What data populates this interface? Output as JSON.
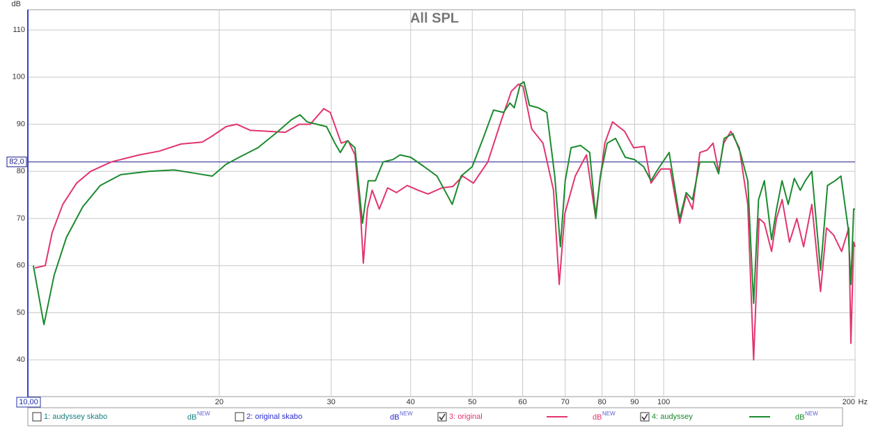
{
  "chart_data": {
    "type": "line",
    "title": "All SPL",
    "ylabel": "dB",
    "xlabel": "Hz",
    "log_x": true,
    "grid": true,
    "xlim": [
      10,
      200
    ],
    "xticks": [
      {
        "value": 10,
        "label": "10,00"
      },
      20,
      30,
      40,
      50,
      60,
      70,
      80,
      90,
      100,
      200
    ],
    "ylim": [
      32.2,
      114.3
    ],
    "yticks": [
      40,
      50,
      60,
      70,
      80,
      90,
      100,
      110
    ],
    "reference_line": {
      "value": 82,
      "label": "82,0",
      "color": "#1a1a8c"
    },
    "legend_unit": "dB",
    "legend_unit_sup": "NEW",
    "hidden_traces": [
      {
        "name": "1: audyssey skabo",
        "color": "#178080",
        "checked": false
      },
      {
        "name": "2: original skabo",
        "color": "#2a2ad0",
        "checked": false
      }
    ],
    "series": [
      {
        "name": "3: original",
        "color": "#e2346e",
        "checked": true,
        "x": [
          10.26,
          10.65,
          10.92,
          11.35,
          11.93,
          12.55,
          13.53,
          14.97,
          16.1,
          17.4,
          18.8,
          19.5,
          20.5,
          21.3,
          22.4,
          23.9,
          25.4,
          26.7,
          27.8,
          29.2,
          29.9,
          31.1,
          31.9,
          32.7,
          33.4,
          33.7,
          34.2,
          34.8,
          35.7,
          36.8,
          38.0,
          39.5,
          41.1,
          42.6,
          44.8,
          46.6,
          48.3,
          50.2,
          52.9,
          55.6,
          57.6,
          59.1,
          60.1,
          62,
          64.6,
          67.1,
          68.5,
          69.9,
          72.6,
          75.6,
          78.1,
          80.8,
          83.1,
          86.8,
          89.7,
          93.3,
          95.5,
          99.0,
          102.4,
          106,
          108.5,
          111,
          114,
          117,
          119.6,
          122,
          124.3,
          127.5,
          131.5,
          135.6,
          138.5,
          141.3,
          144,
          147.8,
          150.5,
          153.6,
          157.7,
          162,
          166,
          171,
          176.5,
          180.3,
          185,
          190.5,
          195.5,
          197,
          199,
          200
        ],
        "values": [
          59.5,
          60,
          67,
          73,
          77.5,
          80,
          82,
          83.5,
          84.3,
          85.8,
          86.2,
          87.5,
          89.5,
          90,
          88.7,
          88.5,
          88.3,
          90,
          90,
          93.3,
          92.5,
          86,
          86.5,
          83.5,
          70,
          60.5,
          72,
          76,
          72,
          76.5,
          75.5,
          77,
          76,
          75.2,
          76.5,
          76.8,
          79,
          77.5,
          82,
          91,
          97,
          98.5,
          98,
          89,
          86,
          76,
          56,
          71,
          79,
          83.5,
          70.5,
          86,
          90.5,
          88.5,
          85,
          85.3,
          77.5,
          80.5,
          80.5,
          69,
          75,
          72,
          84,
          84.5,
          86,
          80,
          86,
          88.5,
          85,
          73,
          40,
          70,
          69,
          63,
          70,
          74,
          65,
          70,
          64,
          73,
          54.5,
          68,
          66.5,
          63,
          68,
          43.5,
          65,
          64
        ]
      },
      {
        "name": "4: audyssey",
        "color": "#1b8a2e",
        "checked": true,
        "x": [
          10.2,
          10.6,
          11.0,
          11.5,
          12.2,
          13.0,
          14.0,
          15.5,
          17.0,
          18.5,
          19.5,
          20.5,
          21.5,
          23,
          24.5,
          26,
          26.8,
          27.5,
          28.5,
          29.5,
          30.4,
          31.0,
          31.8,
          32.7,
          33.6,
          34.3,
          35.2,
          36.2,
          37.5,
          38.5,
          40.0,
          42.0,
          44,
          46.5,
          48,
          50,
          52,
          54,
          56,
          57.3,
          58.2,
          59.5,
          60.3,
          61.5,
          63.5,
          65.5,
          67.4,
          68.8,
          70.0,
          71.5,
          74,
          76.5,
          78.2,
          79.5,
          81.5,
          84,
          87,
          90,
          93,
          95.5,
          98,
          102,
          106,
          108.5,
          111,
          114,
          117,
          120,
          122,
          124.5,
          128.5,
          132,
          135.6,
          138.5,
          141,
          144,
          147.8,
          150.5,
          153.5,
          157,
          160.5,
          164,
          167,
          171,
          176.5,
          181,
          186,
          190,
          195,
          197,
          199,
          200
        ],
        "values": [
          60,
          47.5,
          58,
          66,
          72.5,
          77,
          79.3,
          80,
          80.3,
          79.5,
          79,
          81.5,
          83,
          85,
          88,
          91,
          92,
          90.5,
          90,
          89.5,
          86,
          84,
          86.5,
          85,
          69,
          78,
          78,
          82,
          82.5,
          83.5,
          83,
          81,
          79,
          73,
          79,
          81,
          87,
          93,
          92.5,
          94.5,
          93.5,
          98.5,
          99,
          94,
          93.5,
          92.5,
          79,
          64,
          78,
          85,
          85.5,
          84,
          70,
          79,
          86,
          87,
          83,
          82.5,
          81,
          78,
          80.5,
          84,
          70,
          75.5,
          74,
          82,
          82,
          82,
          79.5,
          87,
          88,
          84,
          78,
          52,
          74,
          78,
          65.5,
          72,
          78,
          73,
          78.5,
          76,
          78,
          80,
          59,
          77,
          78,
          79,
          68,
          56,
          72,
          72
        ]
      }
    ]
  }
}
